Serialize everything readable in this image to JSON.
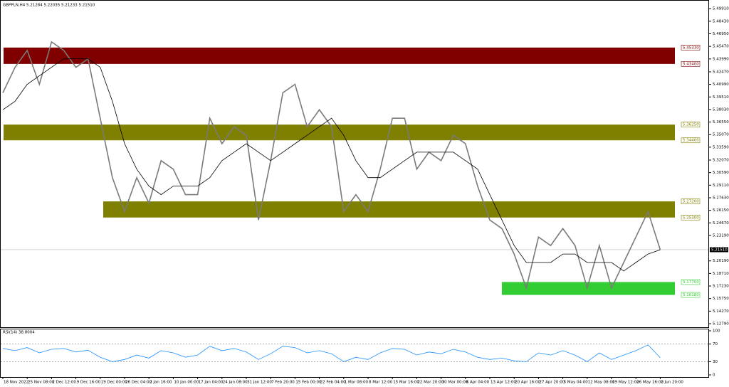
{
  "chart_data": [
    {
      "type": "line",
      "title": "GBPPLN,H4 5.21284 5.22035 5.21233 5.21510",
      "categories": [
        "18 Nov 2022",
        null,
        "25 Nov 08:00",
        null,
        "2 Dec 12:00",
        null,
        "9 Dec 16:00",
        null,
        "19 Dec 00:00",
        null,
        "26 Dec 04:00",
        null,
        "2 Jan 16:00",
        null,
        "10 Jan 00:00",
        null,
        "17 Jan 04:00",
        null,
        "24 Jan 08:00",
        null,
        "31 Jan 12:00",
        null,
        "7 Feb 20:00",
        null,
        "15 Feb 00:00",
        null,
        "22 Feb 04:00",
        null,
        "1 Mar 08:00",
        null,
        "8 Mar 12:00",
        null,
        "15 Mar 16:00",
        null,
        "22 Mar 20:00",
        null,
        "30 Mar 00:00",
        null,
        "6 Apr 04:00",
        null,
        "13 Apr 12:00",
        null,
        "20 Apr 16:00",
        null,
        "27 Apr 20:00",
        null,
        "5 May 04:00",
        null,
        "12 May 08:00",
        null,
        "19 May 12:00",
        null,
        "26 May 16:00",
        null,
        "2 Jun 20:00"
      ],
      "series": [
        {
          "color": "#7a7a7a",
          "values": [
            5.4,
            5.43,
            5.45,
            5.41,
            5.46,
            5.45,
            5.43,
            5.44,
            5.37,
            5.3,
            5.26,
            5.3,
            5.27,
            5.32,
            5.31,
            5.28,
            5.28,
            5.37,
            5.34,
            5.36,
            5.35,
            5.25,
            5.32,
            5.4,
            5.41,
            5.36,
            5.38,
            5.36,
            5.26,
            5.28,
            5.26,
            5.31,
            5.37,
            5.37,
            5.31,
            5.33,
            5.32,
            5.35,
            5.34,
            5.29,
            5.25,
            5.24,
            5.21,
            5.17,
            5.23,
            5.22,
            5.24,
            5.22,
            5.17,
            5.22,
            5.17,
            5.2,
            5.23,
            5.26,
            5.2151
          ]
        },
        {
          "color": "#000000",
          "values": [
            5.38,
            5.39,
            5.41,
            5.42,
            5.43,
            5.44,
            5.44,
            5.44,
            5.43,
            5.39,
            5.34,
            5.31,
            5.29,
            5.28,
            5.29,
            5.29,
            5.29,
            5.3,
            5.32,
            5.33,
            5.34,
            5.33,
            5.32,
            5.33,
            5.34,
            5.35,
            5.36,
            5.37,
            5.35,
            5.32,
            5.3,
            5.3,
            5.31,
            5.32,
            5.33,
            5.33,
            5.33,
            5.33,
            5.32,
            5.31,
            5.28,
            5.25,
            5.22,
            5.2,
            5.2,
            5.2,
            5.21,
            5.21,
            5.2,
            5.2,
            5.2,
            5.19,
            5.2,
            5.21,
            5.215
          ]
        }
      ],
      "ylim": [
        5.1237,
        5.5085
      ],
      "yticks": [
        {
          "value": 5.4991,
          "label": "5.49910"
        },
        {
          "value": 5.4843,
          "label": "5.48430"
        },
        {
          "value": 5.4695,
          "label": "5.46950"
        },
        {
          "value": 5.4547,
          "label": "5.45470"
        },
        {
          "value": 5.4399,
          "label": "5.43990"
        },
        {
          "value": 5.4247,
          "label": "5.42470"
        },
        {
          "value": 5.4099,
          "label": "5.40990"
        },
        {
          "value": 5.3951,
          "label": "5.39510"
        },
        {
          "value": 5.3803,
          "label": "5.38030"
        },
        {
          "value": 5.3655,
          "label": "5.36550"
        },
        {
          "value": 5.3507,
          "label": "5.35070"
        },
        {
          "value": 5.3359,
          "label": "5.33590"
        },
        {
          "value": 5.3207,
          "label": "5.32070"
        },
        {
          "value": 5.3059,
          "label": "5.30590"
        },
        {
          "value": 5.2911,
          "label": "5.29110"
        },
        {
          "value": 5.2763,
          "label": "5.27630"
        },
        {
          "value": 5.2615,
          "label": "5.26150"
        },
        {
          "value": 5.2467,
          "label": "5.24670"
        },
        {
          "value": 5.2319,
          "label": "5.23190"
        },
        {
          "value": 5.2019,
          "label": "5.20190"
        },
        {
          "value": 5.1871,
          "label": "5.18710"
        },
        {
          "value": 5.1723,
          "label": "5.17230"
        },
        {
          "value": 5.1575,
          "label": "5.15750"
        },
        {
          "value": 5.1427,
          "label": "5.14270"
        },
        {
          "value": 5.1279,
          "label": "5.12790"
        }
      ],
      "current_price": {
        "value": 5.2151,
        "label": "5.21510"
      },
      "zones": [
        {
          "color": "#800000",
          "top": {
            "value": 5.4533,
            "label": "5.45330"
          },
          "bottom": {
            "value": 5.434,
            "label": "5.43400"
          }
        },
        {
          "color": "#808000",
          "top": {
            "value": 5.3625,
            "label": "5.36250"
          },
          "bottom": {
            "value": 5.344,
            "label": "5.34400"
          }
        },
        {
          "color": "#808000",
          "top": {
            "value": 5.272,
            "label": "5.27200"
          },
          "bottom": {
            "value": 5.253,
            "label": "5.25300"
          }
        },
        {
          "color": "#32cd32",
          "top": {
            "value": 5.177,
            "label": "5.17700"
          },
          "bottom": {
            "value": 5.1618,
            "label": "5.16180"
          }
        }
      ]
    },
    {
      "type": "line",
      "title": "RSI(14) 38.8004",
      "series": [
        {
          "color": "#1e90ff",
          "values": [
            60,
            55,
            62,
            50,
            58,
            60,
            52,
            56,
            40,
            30,
            35,
            45,
            38,
            55,
            50,
            40,
            45,
            65,
            55,
            60,
            52,
            35,
            48,
            65,
            62,
            50,
            55,
            48,
            30,
            40,
            35,
            50,
            60,
            58,
            45,
            52,
            48,
            58,
            52,
            40,
            35,
            38,
            32,
            30,
            50,
            45,
            55,
            45,
            30,
            50,
            35,
            45,
            55,
            68,
            38.8004
          ]
        }
      ],
      "ylim": [
        0,
        100
      ],
      "yticks": [
        100,
        70,
        30,
        0
      ],
      "levels": [
        70,
        30
      ]
    }
  ]
}
